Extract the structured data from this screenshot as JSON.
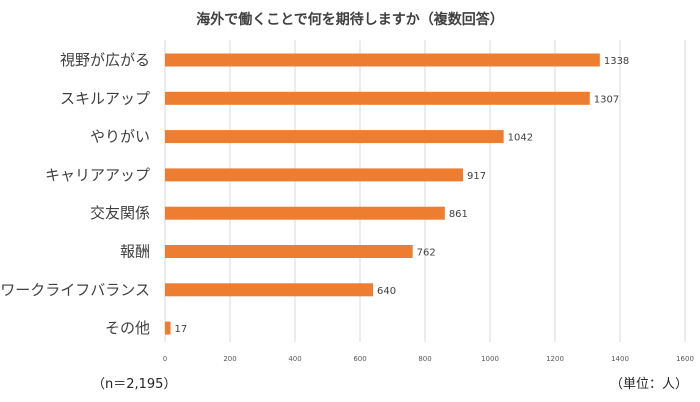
{
  "chart_data": {
    "type": "bar",
    "orientation": "horizontal",
    "title": "海外で働くことで何を期待しますか（複数回答）",
    "categories": [
      "視野が広がる",
      "スキルアップ",
      "やりがい",
      "キャリアアップ",
      "交友関係",
      "報酬",
      "ワークライフバランス",
      "その他"
    ],
    "values": [
      1338,
      1307,
      1042,
      917,
      861,
      762,
      640,
      17
    ],
    "xlim": [
      0,
      1600
    ],
    "xticks": [
      0,
      200,
      400,
      600,
      800,
      1000,
      1200,
      1400,
      1600
    ],
    "grid": true,
    "bar_color": "#ED7D31"
  },
  "notes": {
    "sample": "（n＝2,195）",
    "unit": "（単位：人）"
  }
}
